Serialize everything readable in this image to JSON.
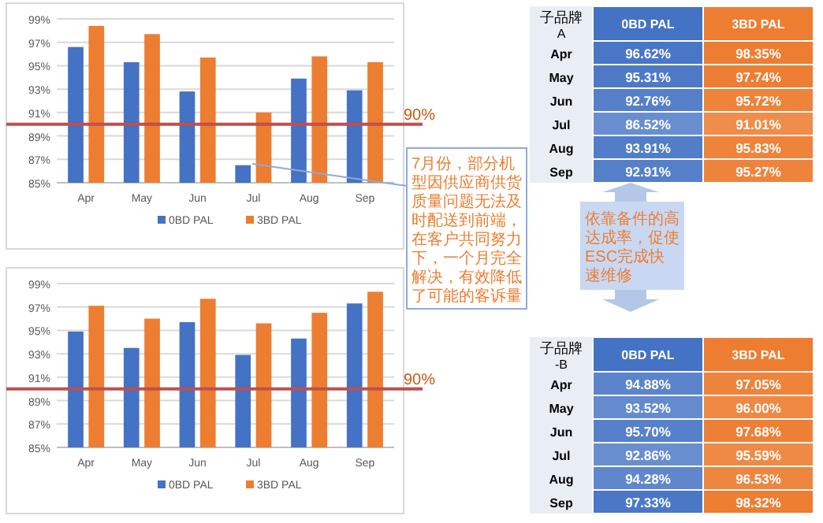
{
  "chart_data": [
    {
      "type": "bar",
      "categories": [
        "Apr",
        "May",
        "Jun",
        "Jul",
        "Aug",
        "Sep"
      ],
      "series": [
        {
          "name": "0BD PAL",
          "color": "#4472c4",
          "values": [
            96.6,
            95.3,
            92.8,
            86.5,
            93.9,
            92.9
          ]
        },
        {
          "name": "3BD PAL",
          "color": "#ed7d31",
          "values": [
            98.4,
            97.7,
            95.7,
            91.0,
            95.8,
            95.3
          ]
        }
      ],
      "ylim": [
        85,
        99
      ],
      "yticks": [
        {
          "value": 85,
          "label": "85%"
        },
        {
          "value": 87,
          "label": "87%"
        },
        {
          "value": 89,
          "label": "89%"
        },
        {
          "value": 91,
          "label": "91%"
        },
        {
          "value": 93,
          "label": "93%"
        },
        {
          "value": 95,
          "label": "95%"
        },
        {
          "value": 97,
          "label": "97%"
        },
        {
          "value": 99,
          "label": "99%"
        }
      ],
      "grid": "y",
      "legend": "bottom",
      "ref_lines": [
        {
          "axis": "y",
          "value": 90,
          "label": "90%",
          "color": "#c0504d"
        }
      ],
      "annotations": [
        "7月份，部分机型因供应商供货质量问题无法及时配送到前端，在客户共同努力下，一个月完全解决，有效降低了可能的客诉量"
      ]
    },
    {
      "type": "heatmap",
      "title": "子品牌A",
      "categories": [
        "0BD PAL",
        "3BD PAL"
      ],
      "colors": [
        "#4472c4",
        "#ed7d31"
      ],
      "y_categories": [
        "Apr",
        "May",
        "Jun",
        "Jul",
        "Aug",
        "Sep"
      ],
      "cells": [
        [
          96.62,
          98.35
        ],
        [
          95.31,
          97.74
        ],
        [
          92.76,
          95.72
        ],
        [
          86.52,
          91.01
        ],
        [
          93.91,
          95.83
        ],
        [
          92.91,
          95.27
        ]
      ],
      "cell_labels": [
        [
          "96.62%",
          "98.35%"
        ],
        [
          "95.31%",
          "97.74%"
        ],
        [
          "92.76%",
          "95.72%"
        ],
        [
          "86.52%",
          "91.01%"
        ],
        [
          "93.91%",
          "95.83%"
        ],
        [
          "92.91%",
          "95.27%"
        ]
      ],
      "annotations": [
        "依靠备件的高达成率，促使ESC完成快速维修"
      ]
    },
    {
      "type": "bar",
      "categories": [
        "Apr",
        "May",
        "Jun",
        "Jul",
        "Aug",
        "Sep"
      ],
      "series": [
        {
          "name": "0BD PAL",
          "color": "#4472c4",
          "values": [
            94.9,
            93.5,
            95.7,
            92.9,
            94.3,
            97.3
          ]
        },
        {
          "name": "3BD PAL",
          "color": "#ed7d31",
          "values": [
            97.1,
            96.0,
            97.7,
            95.6,
            96.5,
            98.3
          ]
        }
      ],
      "ylim": [
        85,
        99
      ],
      "yticks": [
        {
          "value": 85,
          "label": "85%"
        },
        {
          "value": 87,
          "label": "87%"
        },
        {
          "value": 89,
          "label": "89%"
        },
        {
          "value": 91,
          "label": "91%"
        },
        {
          "value": 93,
          "label": "93%"
        },
        {
          "value": 95,
          "label": "95%"
        },
        {
          "value": 97,
          "label": "97%"
        },
        {
          "value": 99,
          "label": "99%"
        }
      ],
      "grid": "y",
      "legend": "bottom",
      "ref_lines": [
        {
          "axis": "y",
          "value": 90,
          "label": "90%",
          "color": "#c0504d"
        }
      ]
    },
    {
      "type": "heatmap",
      "title": "子品牌-B",
      "categories": [
        "0BD PAL",
        "3BD PAL"
      ],
      "colors": [
        "#4472c4",
        "#ed7d31"
      ],
      "y_categories": [
        "Apr",
        "May",
        "Jun",
        "Jul",
        "Aug",
        "Sep"
      ],
      "cells": [
        [
          94.88,
          97.05
        ],
        [
          93.52,
          96.0
        ],
        [
          95.7,
          97.68
        ],
        [
          92.86,
          95.59
        ],
        [
          94.28,
          96.53
        ],
        [
          97.33,
          98.32
        ]
      ],
      "cell_labels": [
        [
          "94.88%",
          "97.05%"
        ],
        [
          "93.52%",
          "96.00%"
        ],
        [
          "95.70%",
          "97.68%"
        ],
        [
          "92.86%",
          "95.59%"
        ],
        [
          "94.28%",
          "96.53%"
        ],
        [
          "97.33%",
          "98.32%"
        ]
      ]
    }
  ]
}
